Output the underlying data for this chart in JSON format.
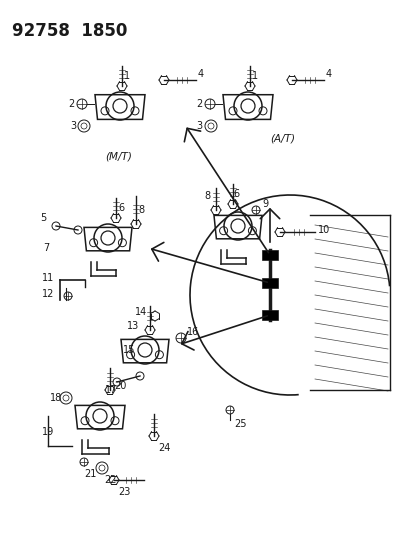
{
  "bg_color": "#ffffff",
  "lc": "#1a1a1a",
  "fig_w": 4.14,
  "fig_h": 5.33,
  "dpi": 100,
  "header": "92758  1850",
  "mt_label": "(M/T)",
  "at_label": "(A/T)"
}
